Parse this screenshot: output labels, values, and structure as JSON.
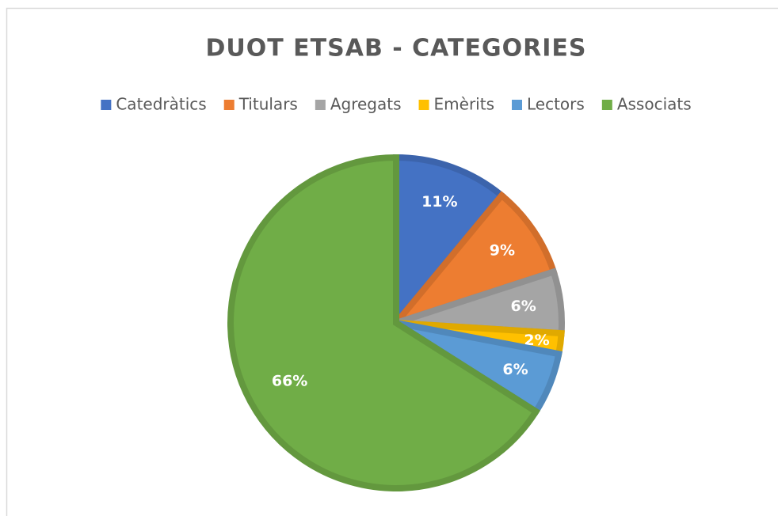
{
  "chart_data": {
    "type": "pie",
    "title": "DUOT ETSAB - CATEGORIES",
    "categories": [
      "Catedràtics",
      "Titulars",
      "Agregats",
      "Emèrits",
      "Lectors",
      "Associats"
    ],
    "values": [
      11,
      9,
      6,
      2,
      6,
      66
    ],
    "value_labels": [
      "11%",
      "9%",
      "6%",
      "2%",
      "6%",
      "66%"
    ],
    "colors": [
      "#4472c4",
      "#ed7d31",
      "#a5a5a5",
      "#ffc000",
      "#5b9bd5",
      "#70ad47"
    ],
    "legend": "top"
  }
}
